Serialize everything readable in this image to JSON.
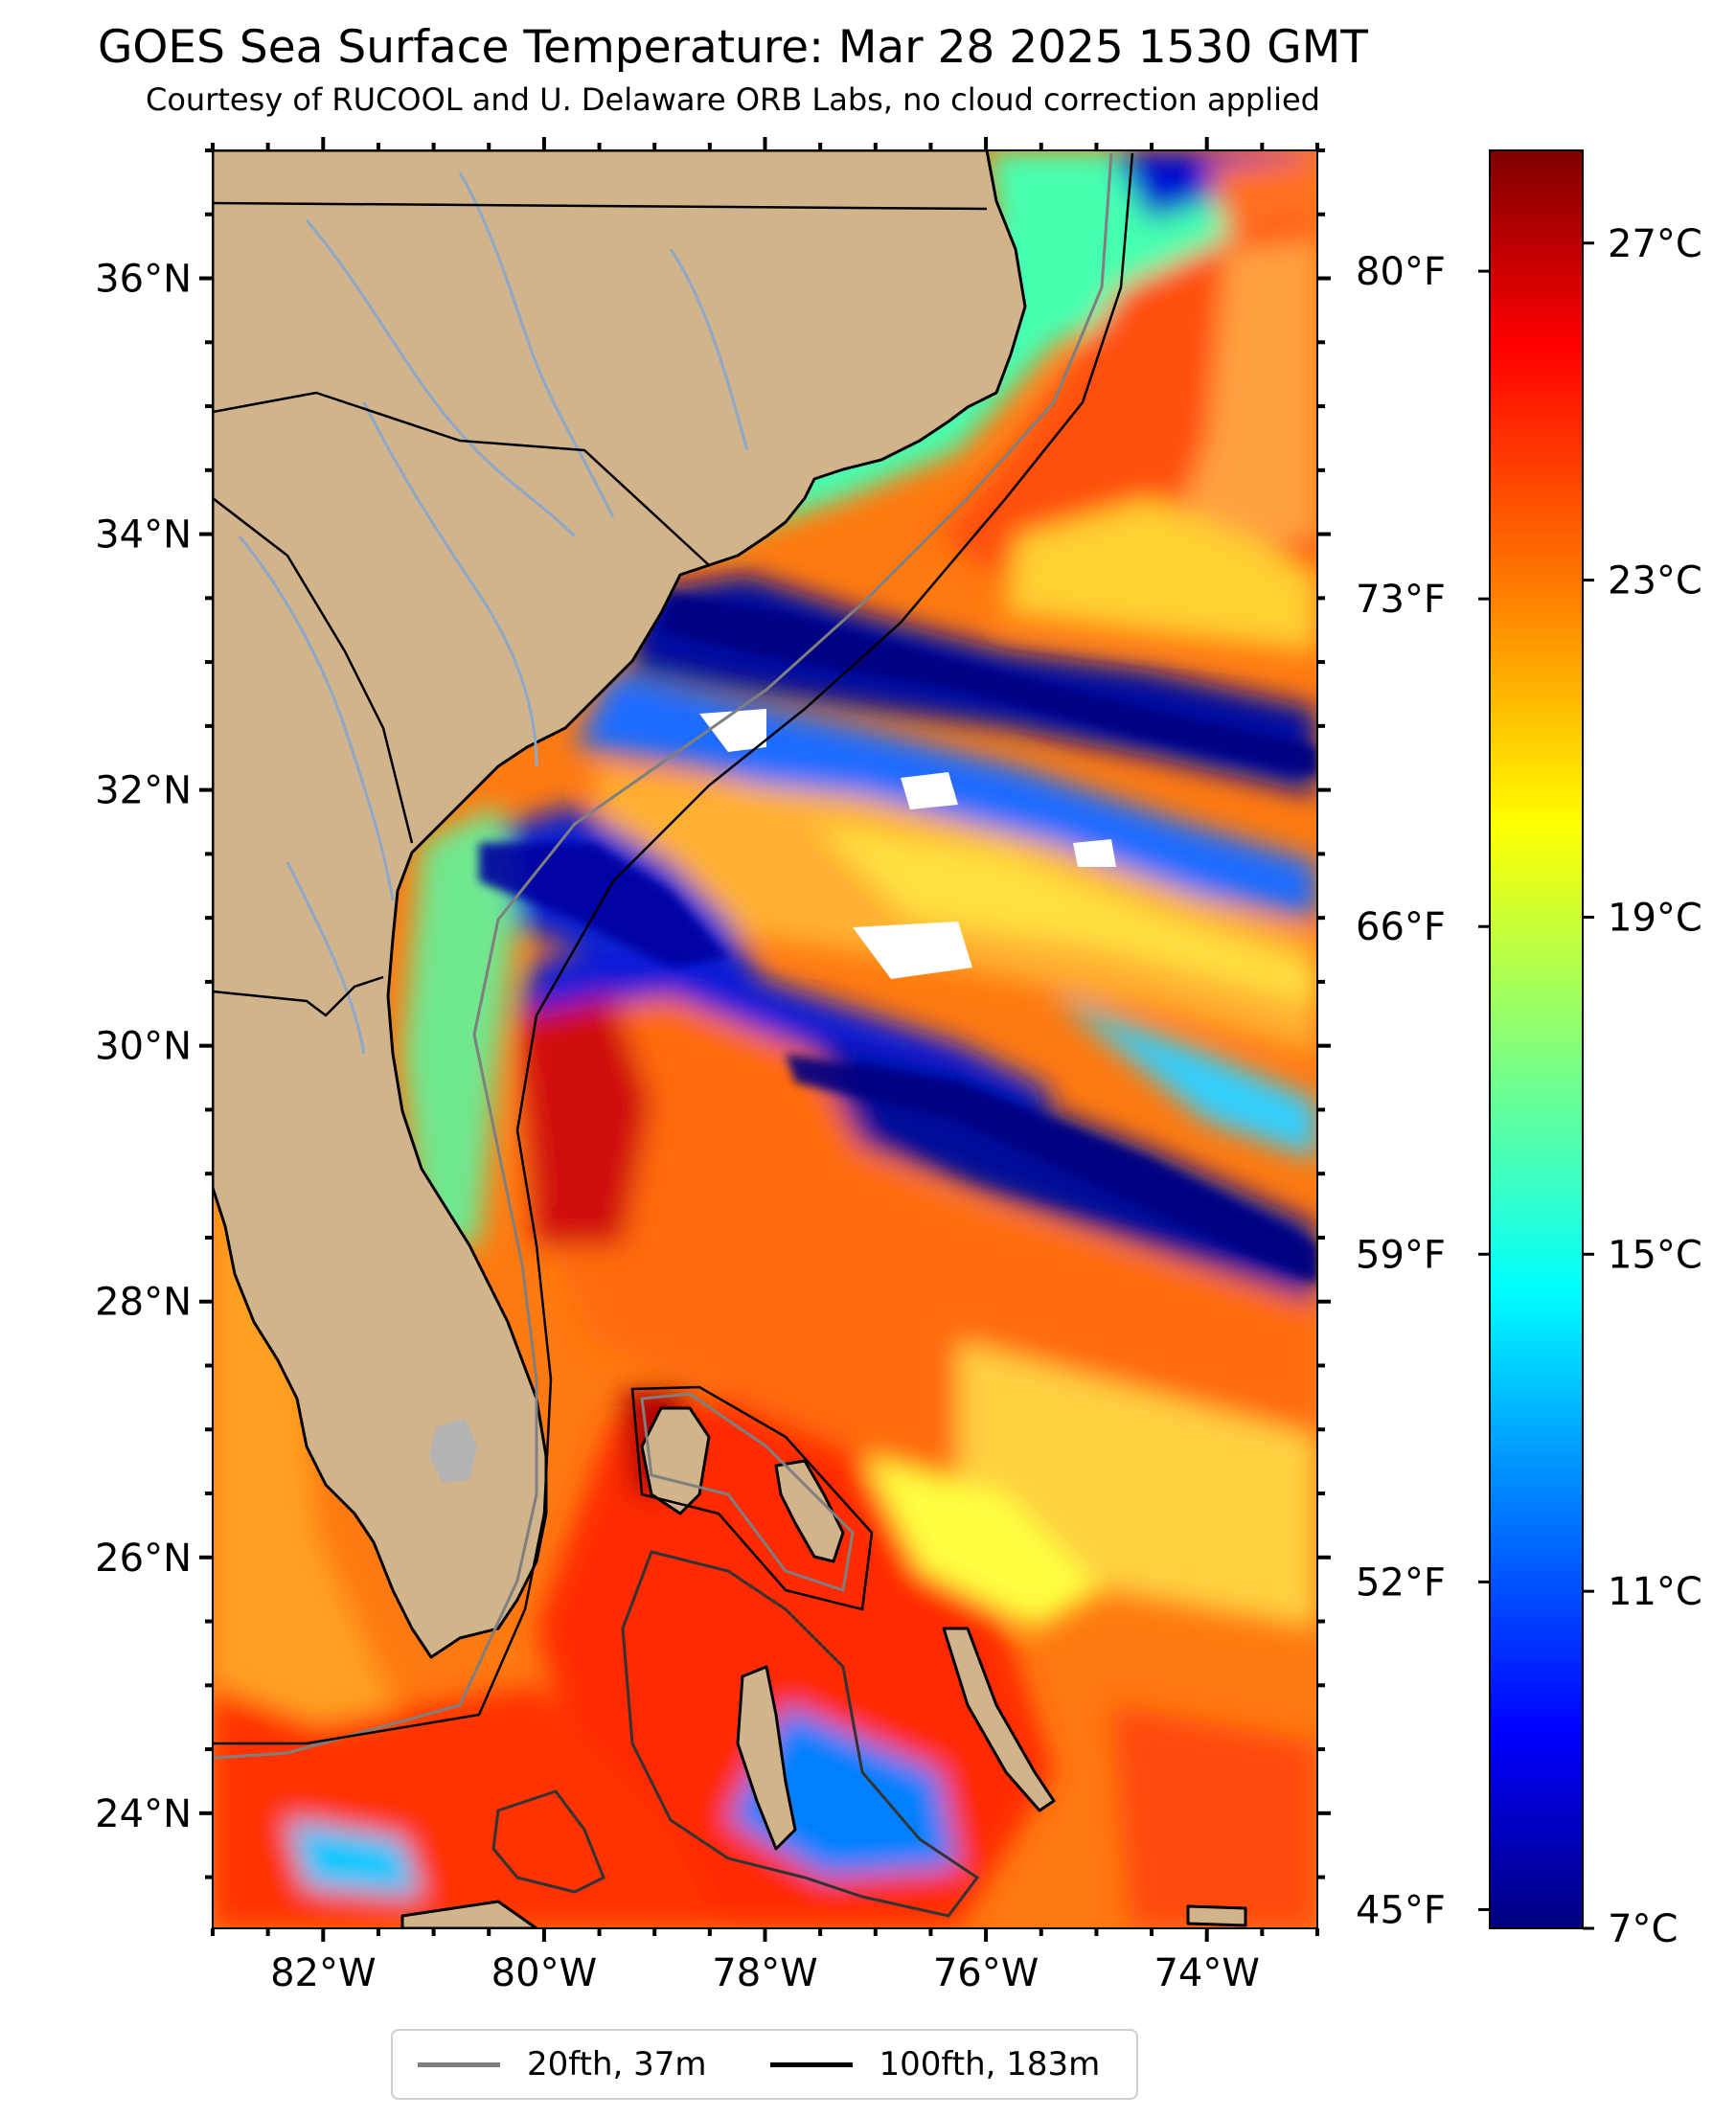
{
  "title": "GOES Sea Surface Temperature: Mar 28 2025 1530 GMT",
  "subtitle": "Courtesy of RUCOOL and U. Delaware ORB Labs, no cloud correction applied",
  "map": {
    "extent": {
      "lon_min": -83,
      "lon_max": -73,
      "lat_min": 23.1,
      "lat_max": 37.0
    },
    "lat_labels": [
      "36°N",
      "34°N",
      "32°N",
      "30°N",
      "28°N",
      "26°N",
      "24°N"
    ],
    "lon_labels": [
      "82°W",
      "80°W",
      "78°W",
      "76°W",
      "74°W"
    ],
    "fahrenheit_labels": [
      "80°F",
      "73°F",
      "66°F",
      "59°F",
      "52°F",
      "45°F"
    ],
    "colors": {
      "land": "#d2b48c",
      "coast": "#000000",
      "rivers": "#8fa8c8",
      "lake": "#b3b3b3",
      "cloud": "#ffffff"
    }
  },
  "colorbar": {
    "min_c": 7,
    "max_c": 28.1,
    "labels": [
      "27°C",
      "23°C",
      "19°C",
      "15°C",
      "11°C",
      "7°C"
    ],
    "colormap": "jet",
    "colors": [
      "#00007f",
      "#0000ff",
      "#007fff",
      "#00ffff",
      "#7fff7f",
      "#ffff00",
      "#ff7f00",
      "#ff0000",
      "#7f0000"
    ]
  },
  "legend": {
    "items": [
      {
        "label": "20fth, 37m",
        "color": "#7f7f7f"
      },
      {
        "label": "100fth, 183m",
        "color": "#000000"
      }
    ]
  }
}
